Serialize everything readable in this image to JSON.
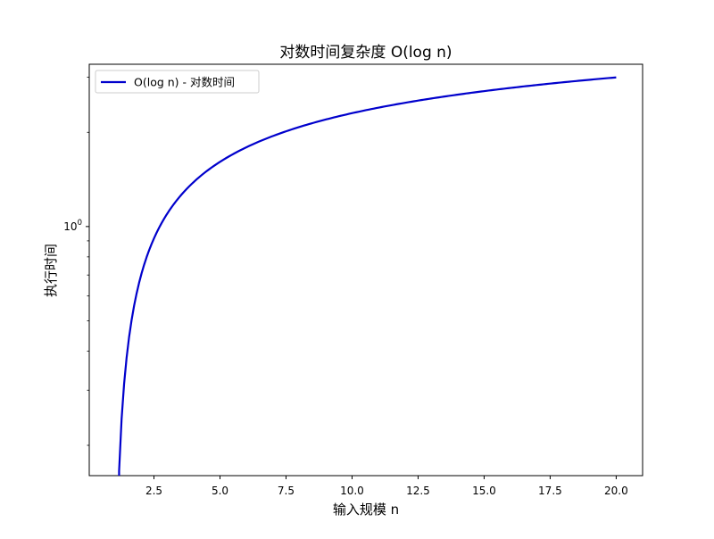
{
  "chart_data": {
    "type": "line",
    "title": "对数时间复杂度 O(log n)",
    "xlabel": "输入规模 n",
    "ylabel": "执行时间",
    "x_scale": "linear",
    "y_scale": "log",
    "xlim": [
      0.05,
      21.0
    ],
    "ylim": [
      0.16,
      3.3
    ],
    "x_ticks": [
      2.5,
      5.0,
      7.5,
      10.0,
      12.5,
      15.0,
      17.5,
      20.0
    ],
    "x_tick_labels": [
      "2.5",
      "5.0",
      "7.5",
      "10.0",
      "12.5",
      "15.0",
      "17.5",
      "20.0"
    ],
    "y_major_ticks": [
      1
    ],
    "y_major_tick_labels": [
      "10",
      "0"
    ],
    "y_minor_ticks": [
      0.2,
      0.3,
      0.4,
      0.5,
      0.6,
      0.7,
      0.8,
      0.9,
      2,
      3
    ],
    "grid": false,
    "legend_position": "top-left",
    "series": [
      {
        "name": "O(log n) - 对数时间",
        "color": "#0000cc",
        "function": "ln(x)",
        "x_start": 1.18,
        "x_end": 20.0,
        "points": 200
      }
    ]
  }
}
